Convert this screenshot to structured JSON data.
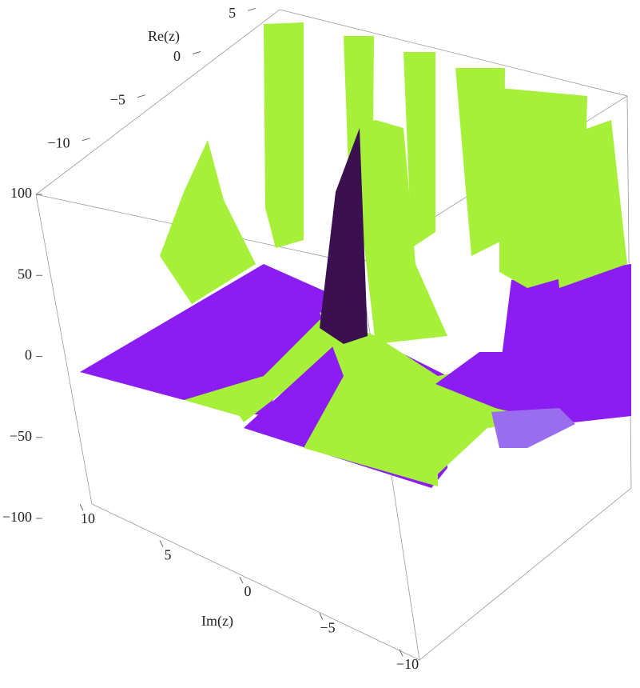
{
  "chart_data": {
    "type": "surface3d",
    "xlabel": "Re(z)",
    "ylabel": "Im(z)",
    "xlim": [
      -12,
      6
    ],
    "xticks": [
      5,
      0,
      {
        "value": -5,
        "label": "−5"
      },
      {
        "value": -10,
        "label": "−10"
      }
    ],
    "ylim": [
      -10,
      10
    ],
    "yticks": [
      10,
      5,
      0,
      {
        "value": -5,
        "label": "−5"
      },
      {
        "value": -10,
        "label": "−10"
      }
    ],
    "zlim": [
      -100,
      100
    ],
    "zticks": [
      100,
      50,
      0,
      {
        "value": -50,
        "label": "−50"
      },
      {
        "value": -100,
        "label": "−100"
      }
    ]
  }
}
